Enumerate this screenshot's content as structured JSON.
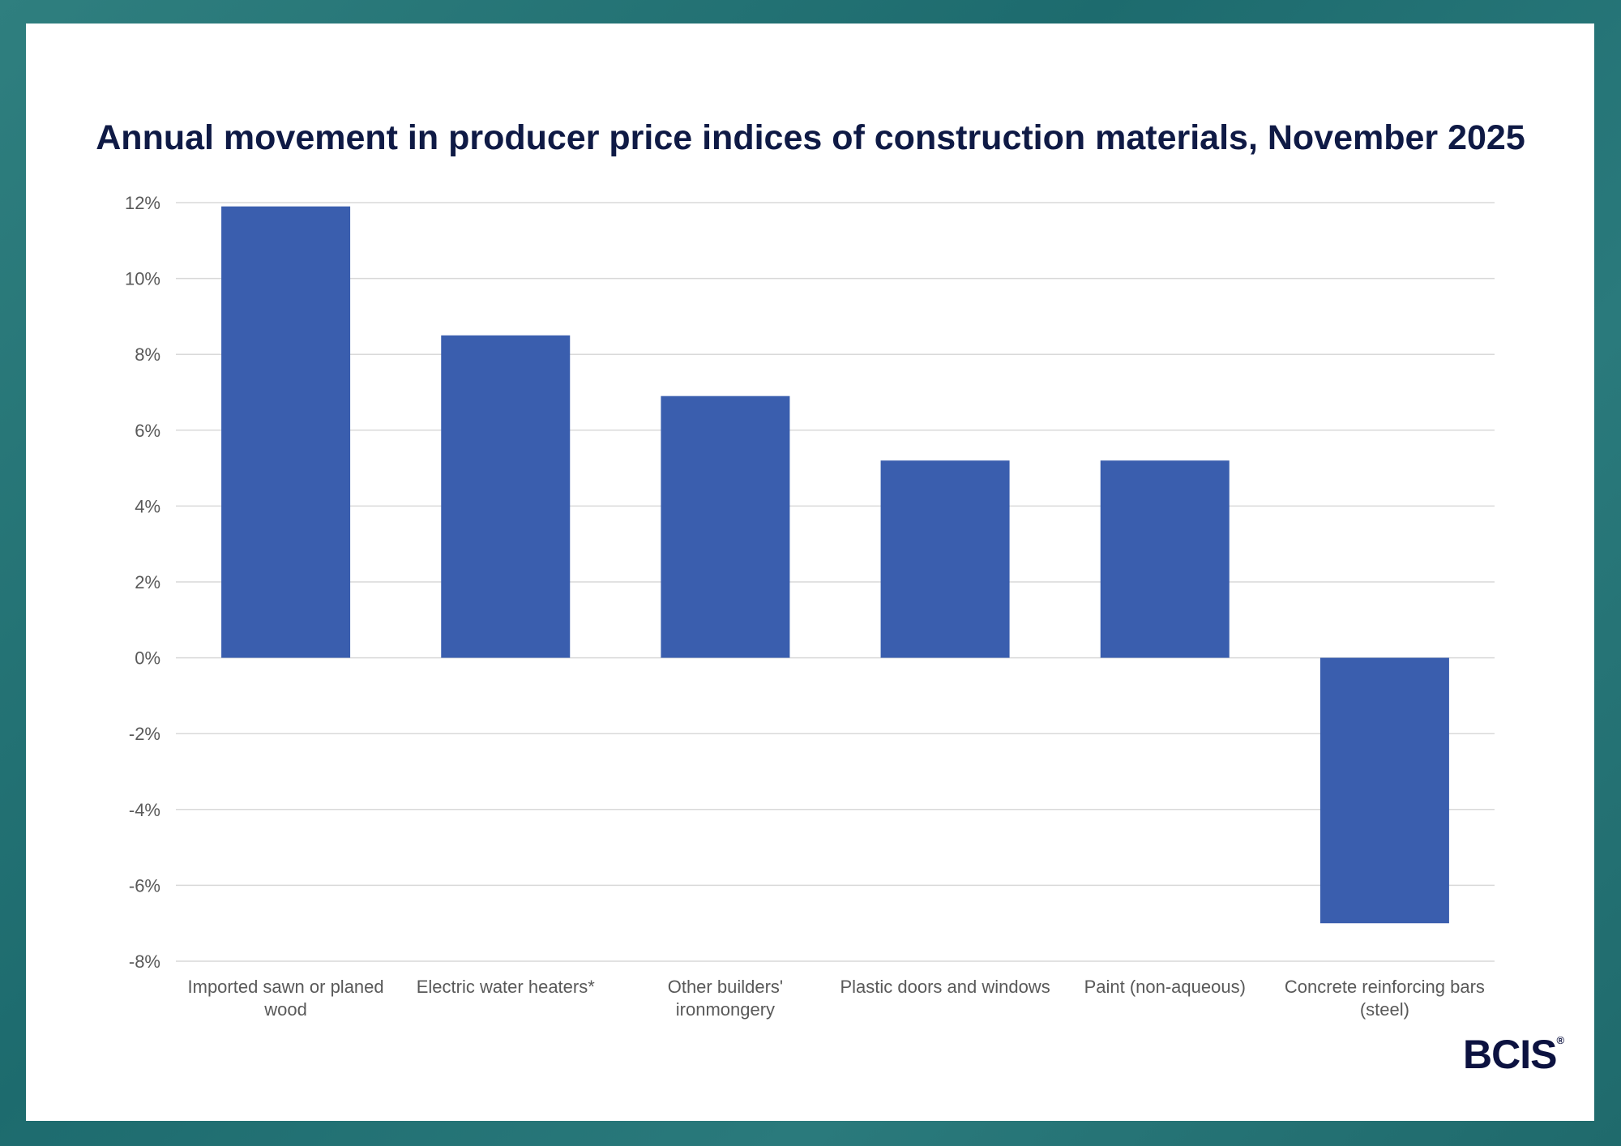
{
  "chart_data": {
    "type": "bar",
    "title": "Annual movement in producer price indices of construction materials, November 2025",
    "xlabel": "",
    "ylabel": "",
    "categories": [
      [
        "Imported sawn or planed",
        "wood"
      ],
      [
        "Electric water heaters*"
      ],
      [
        "Other builders'",
        "ironmongery"
      ],
      [
        "Plastic doors and windows"
      ],
      [
        "Paint (non-aqueous)"
      ],
      [
        "Concrete reinforcing bars",
        "(steel)"
      ]
    ],
    "values": [
      11.9,
      8.5,
      6.9,
      5.2,
      5.2,
      -7.0
    ],
    "ylim": [
      -8,
      12
    ],
    "yticks": [
      12,
      10,
      8,
      6,
      4,
      2,
      0,
      -2,
      -4,
      -6,
      -8
    ],
    "ytick_labels": [
      "12%",
      "10%",
      "8%",
      "6%",
      "4%",
      "2%",
      "0%",
      "-2%",
      "-4%",
      "-6%",
      "-8%"
    ],
    "grid": true,
    "legend": "none",
    "bar_color": "#3a5eae"
  },
  "logo": {
    "text": "BCIS",
    "mark": "®"
  }
}
